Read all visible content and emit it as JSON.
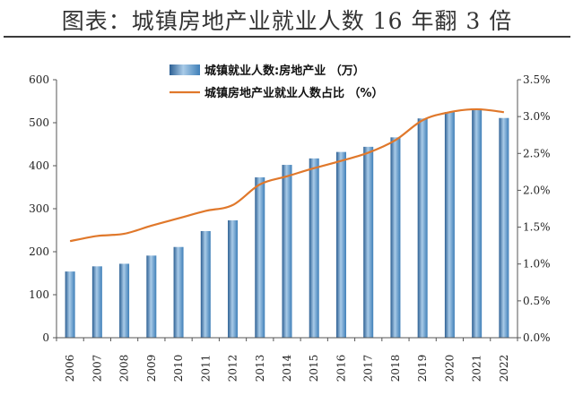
{
  "title": "图表：城镇房地产业就业人数 16 年翻 3 倍",
  "chart_data": {
    "type": "bar",
    "categories": [
      "2006",
      "2007",
      "2008",
      "2009",
      "2010",
      "2011",
      "2012",
      "2013",
      "2014",
      "2015",
      "2016",
      "2017",
      "2018",
      "2019",
      "2020",
      "2021",
      "2022"
    ],
    "series": [
      {
        "name": "城镇就业人数:房地产业 （万）",
        "type": "bar",
        "axis": "left",
        "values": [
          154,
          166,
          172,
          191,
          211,
          248,
          273,
          373,
          402,
          417,
          432,
          444,
          466,
          510,
          525,
          530,
          511
        ]
      },
      {
        "name": "城镇房地产业就业人数占比 （%）",
        "type": "line",
        "axis": "right",
        "values": [
          1.31,
          1.38,
          1.41,
          1.52,
          1.62,
          1.72,
          1.8,
          2.08,
          2.19,
          2.3,
          2.4,
          2.51,
          2.68,
          2.95,
          3.06,
          3.1,
          3.06
        ]
      }
    ],
    "ylim": [
      0,
      600
    ],
    "yticks": [
      "0",
      "100",
      "200",
      "300",
      "400",
      "500",
      "600"
    ],
    "y2lim": [
      0,
      3.5
    ],
    "y2ticks": [
      "0.0%",
      "0.5%",
      "1.0%",
      "1.5%",
      "2.0%",
      "2.5%",
      "3.0%",
      "3.5%"
    ],
    "legend": "top-center",
    "grid": false,
    "colors": {
      "bar": "#3f7fb8",
      "line": "#e0782b"
    }
  }
}
